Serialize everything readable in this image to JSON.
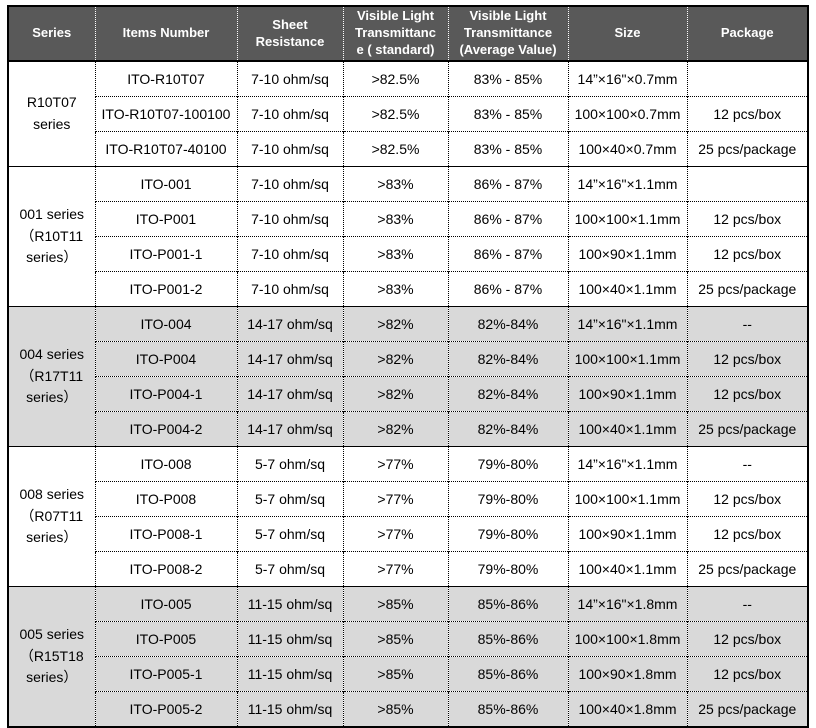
{
  "colors": {
    "header_bg": "#595959",
    "header_text": "#ffffff",
    "shaded_row_bg": "#d9d9d9",
    "border": "#000000"
  },
  "table": {
    "columns": [
      {
        "label": "Series"
      },
      {
        "label": "Items Number"
      },
      {
        "label": "Sheet\nResistance"
      },
      {
        "label": "Visible Light\nTransmittanc\ne ( standard)"
      },
      {
        "label": "Visible Light\nTransmittance\n(Average Value)"
      },
      {
        "label": "Size"
      },
      {
        "label": "Package"
      }
    ],
    "groups": [
      {
        "series": "R10T07\nseries",
        "shaded": false,
        "rows": [
          [
            "ITO-R10T07",
            "7-10 ohm/sq",
            ">82.5%",
            "83% - 85%",
            "14”×16\"×0.7mm",
            ""
          ],
          [
            "ITO-R10T07-100100",
            "7-10 ohm/sq",
            ">82.5%",
            "83% - 85%",
            "100×100×0.7mm",
            "12 pcs/box"
          ],
          [
            "ITO-R10T07-40100",
            "7-10 ohm/sq",
            ">82.5%",
            "83% - 85%",
            "100×40×0.7mm",
            "25 pcs/package"
          ]
        ]
      },
      {
        "series": "001 series\n（R10T11\nseries）",
        "shaded": false,
        "rows": [
          [
            "ITO-001",
            "7-10 ohm/sq",
            ">83%",
            "86% - 87%",
            "14”×16\"×1.1mm",
            ""
          ],
          [
            "ITO-P001",
            "7-10 ohm/sq",
            ">83%",
            "86% - 87%",
            "100×100×1.1mm",
            "12 pcs/box"
          ],
          [
            "ITO-P001-1",
            "7-10 ohm/sq",
            ">83%",
            "86% - 87%",
            "100×90×1.1mm",
            "12 pcs/box"
          ],
          [
            "ITO-P001-2",
            "7-10 ohm/sq",
            ">83%",
            "86% - 87%",
            "100×40×1.1mm",
            "25 pcs/package"
          ]
        ]
      },
      {
        "series": "004 series\n（R17T11\nseries）",
        "shaded": true,
        "rows": [
          [
            "ITO-004",
            "14-17 ohm/sq",
            ">82%",
            "82%-84%",
            "14”×16\"×1.1mm",
            "--"
          ],
          [
            "ITO-P004",
            "14-17 ohm/sq",
            ">82%",
            "82%-84%",
            "100×100×1.1mm",
            "12 pcs/box"
          ],
          [
            "ITO-P004-1",
            "14-17 ohm/sq",
            ">82%",
            "82%-84%",
            "100×90×1.1mm",
            "12 pcs/box"
          ],
          [
            "ITO-P004-2",
            "14-17 ohm/sq",
            ">82%",
            "82%-84%",
            "100×40×1.1mm",
            "25 pcs/package"
          ]
        ]
      },
      {
        "series": "008 series\n（R07T11\nseries）",
        "shaded": false,
        "rows": [
          [
            "ITO-008",
            "5-7 ohm/sq",
            ">77%",
            "79%-80%",
            "14”×16\"×1.1mm",
            "--"
          ],
          [
            "ITO-P008",
            "5-7 ohm/sq",
            ">77%",
            "79%-80%",
            "100×100×1.1mm",
            "12 pcs/box"
          ],
          [
            "ITO-P008-1",
            "5-7 ohm/sq",
            ">77%",
            "79%-80%",
            "100×90×1.1mm",
            "12 pcs/box"
          ],
          [
            "ITO-P008-2",
            "5-7 ohm/sq",
            ">77%",
            "79%-80%",
            "100×40×1.1mm",
            "25 pcs/package"
          ]
        ]
      },
      {
        "series": "005 series\n（R15T18\nseries）",
        "shaded": true,
        "rows": [
          [
            "ITO-005",
            "11-15 ohm/sq",
            ">85%",
            "85%-86%",
            "14”×16\"×1.8mm",
            "--"
          ],
          [
            "ITO-P005",
            "11-15 ohm/sq",
            ">85%",
            "85%-86%",
            "100×100×1.8mm",
            "12 pcs/box"
          ],
          [
            "ITO-P005-1",
            "11-15 ohm/sq",
            ">85%",
            "85%-86%",
            "100×90×1.8mm",
            "12 pcs/box"
          ],
          [
            "ITO-P005-2",
            "11-15 ohm/sq",
            ">85%",
            "85%-86%",
            "100×40×1.8mm",
            "25 pcs/package"
          ]
        ]
      }
    ]
  }
}
